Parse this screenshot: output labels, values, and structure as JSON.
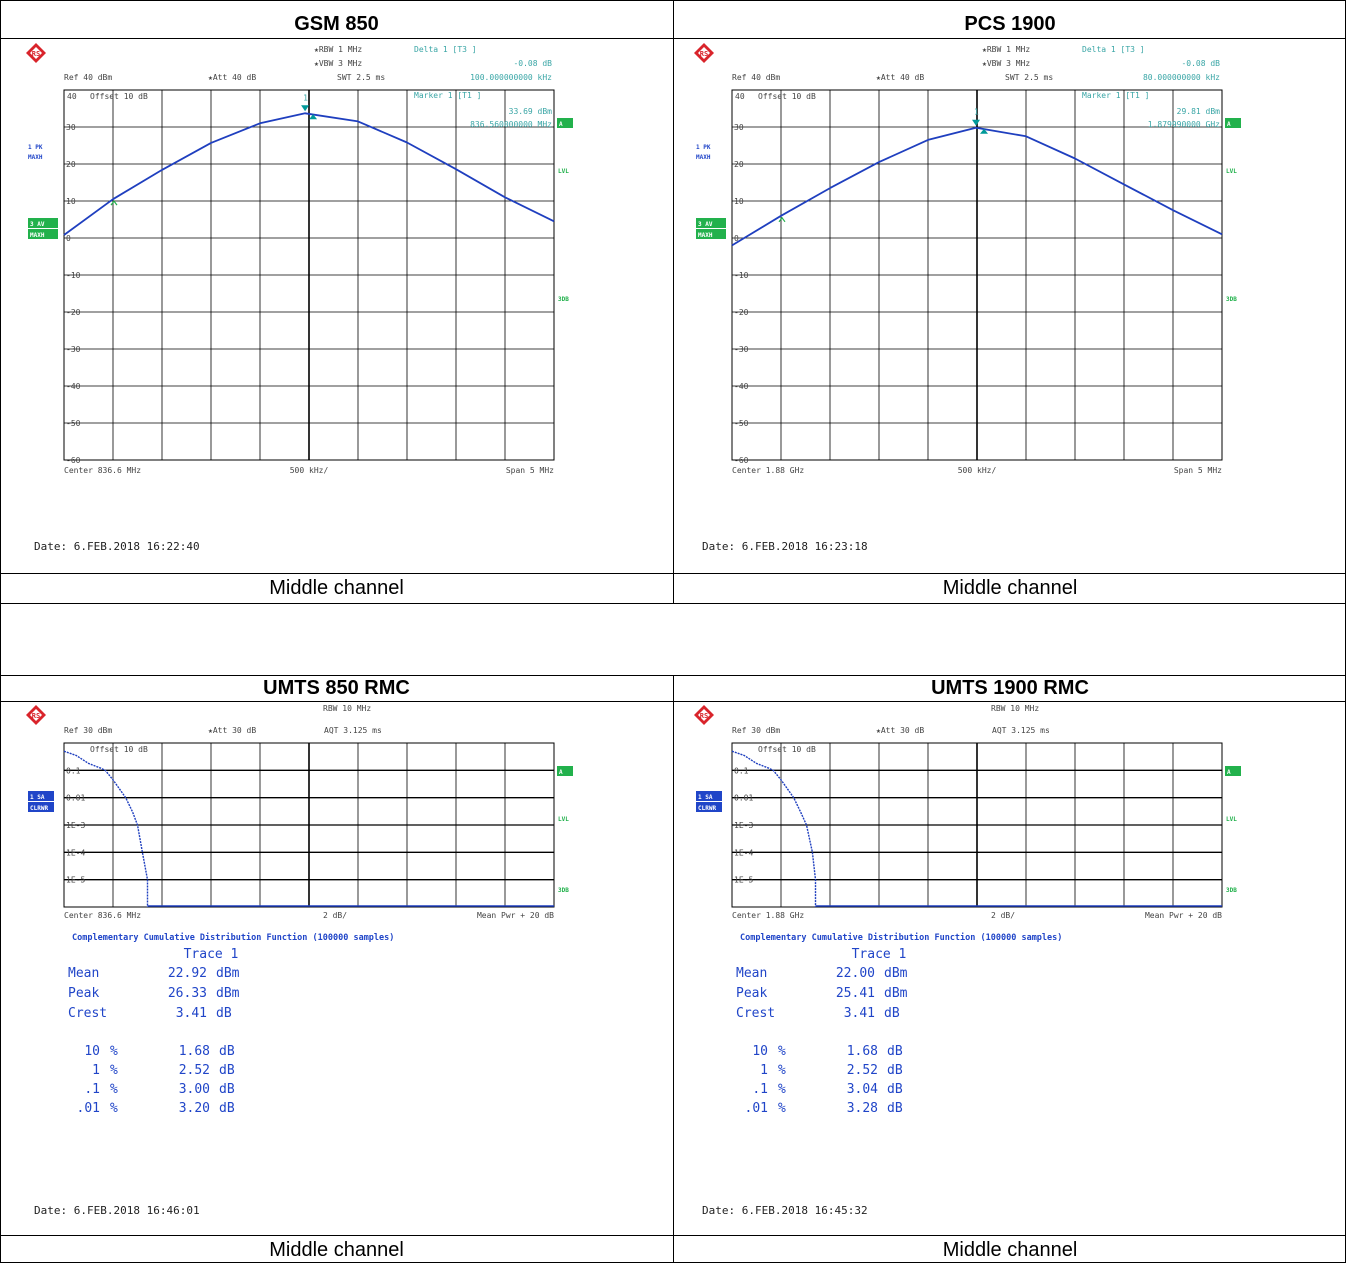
{
  "colors": {
    "grid": "#000000",
    "trace": "#1f3fbf",
    "marker": "#009999",
    "teal_text": "#3aa6a6",
    "green": "#22b14c",
    "blue_label": "#2045c8",
    "axis_text": "#444444"
  },
  "icons": {
    "logo": "rohde-schwarz-logo"
  },
  "panels": [
    {
      "title": "GSM 850",
      "caption": "Middle channel",
      "date": "Date: 6.FEB.2018  16:22:40",
      "settings": {
        "rbw": "RBW 1 MHz",
        "vbw": "VBW 3 MHz",
        "ref": "Ref  40 dBm",
        "att": "Att  40 dB",
        "swt": "SWT 2.5 ms",
        "offset": "Offset  10 dB",
        "ytop": "40"
      },
      "delta": {
        "label": "Delta 1 [T3 ]",
        "value": "-0.08 dB",
        "freq": "100.000000000 kHz"
      },
      "marker": {
        "label": "Marker 1 [T1 ]",
        "value": "33.69 dBm",
        "freq": "836.560000000 MHz",
        "tag": "1"
      },
      "side": {
        "trace1": "1 PK",
        "trace1_mode": "MAXH",
        "trace3": "3 AV",
        "trace3_mode": "MAXH",
        "a": "A",
        "lvl": "LVL",
        "db3": "3DB"
      },
      "footer": {
        "left": "Center 836.6 MHz",
        "mid": "500 kHz/",
        "right": "Span 5 MHz"
      },
      "chart_data": {
        "type": "line",
        "x_unit": "MHz",
        "xlim": [
          834.1,
          839.1
        ],
        "ylim": [
          -60,
          40
        ],
        "x": [
          834.1,
          834.6,
          835.1,
          835.6,
          836.1,
          836.56,
          837.1,
          837.6,
          838.1,
          838.6,
          839.1
        ],
        "y": [
          0.8,
          10.5,
          18.4,
          25.7,
          31.0,
          33.7,
          31.5,
          25.8,
          18.6,
          11.0,
          4.5
        ],
        "yticks": [
          "30",
          "20",
          "10",
          "0",
          "-10",
          "-20",
          "-30",
          "-40",
          "-50",
          "-60"
        ]
      }
    },
    {
      "title": "PCS 1900",
      "caption": "Middle channel",
      "date": "Date: 6.FEB.2018  16:23:18",
      "settings": {
        "rbw": "RBW 1 MHz",
        "vbw": "VBW 3 MHz",
        "ref": "Ref  40 dBm",
        "att": "Att  40 dB",
        "swt": "SWT 2.5 ms",
        "offset": "Offset  10 dB",
        "ytop": "40"
      },
      "delta": {
        "label": "Delta 1 [T3 ]",
        "value": "-0.08 dB",
        "freq": "80.000000000 kHz"
      },
      "marker": {
        "label": "Marker 1 [T1 ]",
        "value": "29.81 dBm",
        "freq": "1.879990000 GHz",
        "tag": "1"
      },
      "side": {
        "trace1": "1 PK",
        "trace1_mode": "MAXH",
        "trace3": "3 AV",
        "trace3_mode": "MAXH",
        "a": "A",
        "lvl": "LVL",
        "db3": "3DB"
      },
      "footer": {
        "left": "Center 1.88 GHz",
        "mid": "500 kHz/",
        "right": "Span 5 MHz"
      },
      "chart_data": {
        "type": "line",
        "x_unit": "GHz",
        "xlim": [
          1.8775,
          1.8825
        ],
        "ylim": [
          -60,
          40
        ],
        "x": [
          1.8775,
          1.878,
          1.8785,
          1.879,
          1.8795,
          1.87999,
          1.8805,
          1.881,
          1.8815,
          1.882,
          1.8825
        ],
        "y": [
          -2.0,
          6.0,
          13.5,
          20.5,
          26.5,
          29.8,
          27.5,
          21.5,
          14.5,
          7.5,
          1.0
        ],
        "yticks": [
          "30",
          "20",
          "10",
          "0",
          "-10",
          "-20",
          "-30",
          "-40",
          "-50",
          "-60"
        ]
      }
    },
    {
      "title": "UMTS 850 RMC",
      "caption": "Middle channel",
      "date": "Date: 6.FEB.2018  16:46:01",
      "settings": {
        "rbw": "RBW 10 MHz",
        "ref": "Ref  30 dBm",
        "att": "Att  30 dB",
        "aqt": "AQT 3.125 ms",
        "offset": "Offset  10 dB"
      },
      "side": {
        "trace1": "1 SA",
        "trace1_mode": "CLRWR",
        "a": "A",
        "lvl": "LVL",
        "db3": "3DB"
      },
      "footer": {
        "left": "Center 836.6 MHz",
        "mid": "2 dB/",
        "right": "Mean Pwr + 20 dB"
      },
      "ccdf_title": "Complementary Cumulative Distribution Function (100000 samples)",
      "stats": {
        "header": "Trace 1",
        "rows": [
          {
            "k": "Mean",
            "v": "22.92",
            "u": "dBm"
          },
          {
            "k": "Peak",
            "v": "26.33",
            "u": "dBm"
          },
          {
            "k": "Crest",
            "v": "3.41",
            "u": "dB"
          }
        ],
        "pct": [
          {
            "p": "10",
            "v": "1.68"
          },
          {
            "p": "1",
            "v": "2.52"
          },
          {
            "p": ".1",
            "v": "3.00"
          },
          {
            "p": ".01",
            "v": "3.20"
          }
        ],
        "pct_sym": "%",
        "unit": "dB"
      },
      "chart_data": {
        "type": "line",
        "y_scale": "log",
        "x_unit": "dB above mean power",
        "xlim": [
          0,
          20
        ],
        "ylim": [
          1e-06,
          1
        ],
        "x": [
          0.0,
          0.5,
          1.0,
          1.5,
          1.68,
          2.0,
          2.52,
          2.8,
          3.0,
          3.2,
          3.41
        ],
        "y": [
          0.5,
          0.35,
          0.18,
          0.12,
          0.1,
          0.045,
          0.01,
          0.003,
          0.001,
          0.0001,
          1e-05
        ],
        "yticks": [
          "0.1",
          "0.01",
          "1E-3",
          "1E-4",
          "1E-5"
        ]
      }
    },
    {
      "title": "UMTS 1900 RMC",
      "caption": "Middle channel",
      "date": "Date: 6.FEB.2018  16:45:32",
      "settings": {
        "rbw": "RBW 10 MHz",
        "ref": "Ref  30 dBm",
        "att": "Att  30 dB",
        "aqt": "AQT 3.125 ms",
        "offset": "Offset  10 dB"
      },
      "side": {
        "trace1": "1 SA",
        "trace1_mode": "CLRWR",
        "a": "A",
        "lvl": "LVL",
        "db3": "3DB"
      },
      "footer": {
        "left": "Center 1.88 GHz",
        "mid": "2 dB/",
        "right": "Mean Pwr + 20 dB"
      },
      "ccdf_title": "Complementary Cumulative Distribution Function (100000 samples)",
      "stats": {
        "header": "Trace 1",
        "rows": [
          {
            "k": "Mean",
            "v": "22.00",
            "u": "dBm"
          },
          {
            "k": "Peak",
            "v": "25.41",
            "u": "dBm"
          },
          {
            "k": "Crest",
            "v": "3.41",
            "u": "dB"
          }
        ],
        "pct": [
          {
            "p": "10",
            "v": "1.68"
          },
          {
            "p": "1",
            "v": "2.52"
          },
          {
            "p": ".1",
            "v": "3.04"
          },
          {
            "p": ".01",
            "v": "3.28"
          }
        ],
        "pct_sym": "%",
        "unit": "dB"
      },
      "chart_data": {
        "type": "line",
        "y_scale": "log",
        "x_unit": "dB above mean power",
        "xlim": [
          0,
          20
        ],
        "ylim": [
          1e-06,
          1
        ],
        "x": [
          0.0,
          0.5,
          1.0,
          1.5,
          1.68,
          2.0,
          2.52,
          2.8,
          3.04,
          3.28,
          3.41
        ],
        "y": [
          0.5,
          0.35,
          0.18,
          0.12,
          0.1,
          0.045,
          0.01,
          0.003,
          0.001,
          0.0001,
          1e-05
        ],
        "yticks": [
          "0.1",
          "0.01",
          "1E-3",
          "1E-4",
          "1E-5"
        ]
      }
    }
  ]
}
